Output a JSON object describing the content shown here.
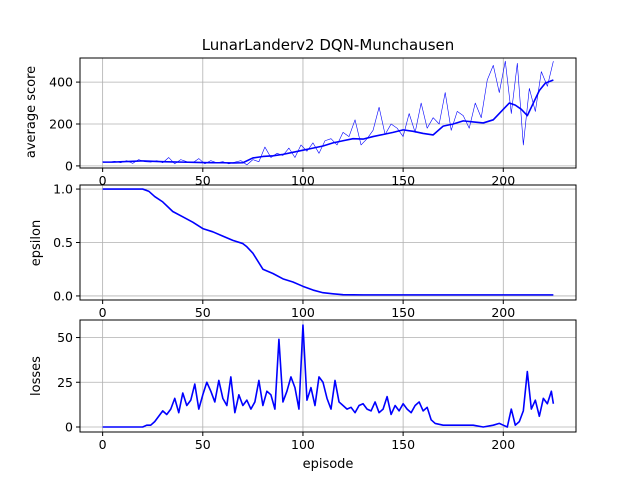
{
  "chart_data": [
    {
      "type": "line",
      "title": "LunarLanderv2 DQN-Munchausen",
      "xlabel": "",
      "ylabel": "average score",
      "xlim": [
        -11.3,
        236.3
      ],
      "ylim": [
        -10,
        515
      ],
      "xticks": [
        0,
        50,
        100,
        150,
        200
      ],
      "yticks": [
        0,
        200,
        400
      ],
      "grid": true,
      "series": [
        {
          "color": "#0000ff",
          "linewidth": 0.6,
          "x": [
            0,
            3,
            6,
            9,
            12,
            15,
            18,
            21,
            24,
            27,
            30,
            33,
            36,
            39,
            42,
            45,
            48,
            51,
            54,
            57,
            60,
            63,
            66,
            69,
            72,
            75,
            78,
            81,
            84,
            87,
            90,
            93,
            96,
            99,
            102,
            105,
            108,
            111,
            114,
            117,
            120,
            123,
            126,
            129,
            132,
            135,
            138,
            141,
            144,
            147,
            150,
            153,
            156,
            159,
            162,
            165,
            168,
            171,
            174,
            177,
            180,
            183,
            186,
            189,
            192,
            195,
            198,
            201,
            204,
            207,
            210,
            213,
            216,
            219,
            222,
            225
          ],
          "y": [
            20,
            18,
            22,
            15,
            25,
            12,
            30,
            20,
            18,
            25,
            15,
            40,
            10,
            30,
            20,
            15,
            35,
            10,
            25,
            15,
            20,
            10,
            18,
            25,
            5,
            30,
            20,
            90,
            40,
            60,
            50,
            85,
            40,
            100,
            70,
            110,
            60,
            120,
            130,
            100,
            160,
            140,
            220,
            100,
            130,
            170,
            280,
            150,
            200,
            180,
            140,
            250,
            160,
            300,
            180,
            230,
            200,
            350,
            170,
            260,
            240,
            180,
            300,
            230,
            410,
            480,
            350,
            500,
            250,
            490,
            100,
            370,
            260,
            450,
            380,
            500
          ]
        },
        {
          "color": "#0000ff",
          "linewidth": 1.6,
          "x": [
            0,
            5,
            10,
            15,
            20,
            25,
            30,
            35,
            40,
            45,
            50,
            55,
            60,
            65,
            70,
            75,
            80,
            85,
            90,
            95,
            100,
            105,
            110,
            115,
            120,
            125,
            130,
            135,
            140,
            145,
            150,
            155,
            160,
            165,
            170,
            175,
            180,
            185,
            190,
            195,
            200,
            203,
            206,
            209,
            212,
            215,
            218,
            221,
            225
          ],
          "y": [
            18,
            18,
            20,
            22,
            24,
            22,
            20,
            19,
            18,
            17,
            16,
            15,
            15,
            14,
            15,
            38,
            45,
            48,
            55,
            65,
            75,
            85,
            95,
            110,
            120,
            130,
            128,
            140,
            150,
            160,
            172,
            165,
            155,
            148,
            190,
            200,
            215,
            210,
            205,
            220,
            270,
            300,
            290,
            270,
            240,
            300,
            360,
            395,
            410
          ]
        }
      ]
    },
    {
      "type": "line",
      "title": "",
      "xlabel": "",
      "ylabel": "epsilon",
      "xlim": [
        -11.3,
        236.3
      ],
      "ylim": [
        -0.038,
        1.038
      ],
      "xticks": [
        0,
        50,
        100,
        150,
        200
      ],
      "yticks": [
        0.0,
        0.5,
        1.0
      ],
      "grid": true,
      "series": [
        {
          "color": "#0000ff",
          "linewidth": 1.6,
          "x": [
            0,
            10,
            20,
            23,
            26,
            30,
            35,
            40,
            45,
            50,
            55,
            60,
            65,
            70,
            72,
            75,
            80,
            85,
            90,
            95,
            100,
            105,
            110,
            115,
            120,
            130,
            140,
            150,
            160,
            170,
            180,
            190,
            200,
            210,
            220,
            225
          ],
          "y": [
            1.0,
            1.0,
            1.0,
            0.98,
            0.93,
            0.88,
            0.79,
            0.74,
            0.69,
            0.63,
            0.6,
            0.56,
            0.52,
            0.49,
            0.46,
            0.4,
            0.25,
            0.21,
            0.16,
            0.13,
            0.09,
            0.055,
            0.03,
            0.02,
            0.012,
            0.01,
            0.01,
            0.01,
            0.01,
            0.01,
            0.01,
            0.01,
            0.01,
            0.01,
            0.01,
            0.01
          ]
        }
      ]
    },
    {
      "type": "line",
      "title": "",
      "xlabel": "episode",
      "ylabel": "losses",
      "xlim": [
        -11.3,
        236.3
      ],
      "ylim": [
        -2.8,
        59.8
      ],
      "xticks": [
        0,
        50,
        100,
        150,
        200
      ],
      "yticks": [
        0,
        25,
        50
      ],
      "grid": true,
      "series": [
        {
          "color": "#0000ff",
          "linewidth": 1.6,
          "x": [
            0,
            5,
            10,
            15,
            20,
            22,
            24,
            26,
            28,
            30,
            32,
            34,
            36,
            38,
            40,
            42,
            44,
            46,
            48,
            50,
            52,
            54,
            56,
            58,
            60,
            62,
            64,
            66,
            68,
            70,
            72,
            74,
            76,
            78,
            80,
            82,
            84,
            86,
            88,
            90,
            92,
            94,
            96,
            98,
            100,
            102,
            104,
            106,
            108,
            110,
            112,
            114,
            116,
            118,
            120,
            122,
            124,
            126,
            128,
            130,
            132,
            134,
            136,
            138,
            140,
            142,
            144,
            146,
            148,
            150,
            152,
            154,
            156,
            158,
            160,
            162,
            164,
            166,
            170,
            175,
            180,
            185,
            190,
            195,
            198,
            200,
            202,
            204,
            206,
            208,
            210,
            212,
            214,
            216,
            218,
            220,
            222,
            224,
            225
          ],
          "y": [
            0,
            0,
            0,
            0,
            0,
            1,
            1,
            3,
            6,
            9,
            7,
            10,
            16,
            8,
            19,
            12,
            15,
            24,
            10,
            18,
            25,
            20,
            14,
            26,
            16,
            12,
            28,
            8,
            18,
            12,
            15,
            10,
            14,
            26,
            12,
            20,
            18,
            10,
            49,
            14,
            20,
            28,
            22,
            10,
            57,
            15,
            22,
            12,
            28,
            25,
            16,
            10,
            26,
            14,
            12,
            10,
            11,
            8,
            12,
            13,
            10,
            9,
            14,
            8,
            10,
            17,
            7,
            12,
            9,
            13,
            10,
            8,
            12,
            14,
            9,
            11,
            4,
            2,
            1,
            1,
            1,
            1,
            0,
            1,
            2,
            1,
            0,
            10,
            1,
            3,
            9,
            31,
            10,
            15,
            6,
            16,
            13,
            20,
            13
          ]
        }
      ]
    }
  ]
}
